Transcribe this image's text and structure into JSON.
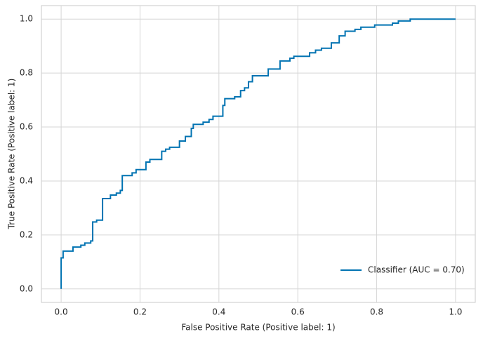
{
  "chart_data": {
    "type": "line",
    "xlabel": "False Positive Rate (Positive label: 1)",
    "ylabel": "True Positive Rate (Positive label: 1)",
    "xlim": [
      -0.05,
      1.05
    ],
    "ylim": [
      -0.05,
      1.05
    ],
    "xticks": [
      {
        "value": 0,
        "label": "0.0"
      },
      0.2,
      0.4,
      0.6,
      0.8,
      {
        "value": 1,
        "label": "1.0"
      }
    ],
    "yticks": [
      {
        "value": 0,
        "label": "0.0"
      },
      0.2,
      0.4,
      0.6,
      0.8,
      {
        "value": 1,
        "label": "1.0"
      }
    ],
    "grid": true,
    "legend": "lower right",
    "series": [
      {
        "name": "Classifier (AUC = 0.70)",
        "color": "#0173b2",
        "x": [
          0,
          0,
          0.005,
          0.005,
          0.03,
          0.03,
          0.05,
          0.05,
          0.06,
          0.06,
          0.075,
          0.075,
          0.08,
          0.08,
          0.09,
          0.09,
          0.105,
          0.105,
          0.125,
          0.125,
          0.14,
          0.14,
          0.15,
          0.15,
          0.155,
          0.155,
          0.18,
          0.18,
          0.19,
          0.19,
          0.215,
          0.215,
          0.225,
          0.225,
          0.255,
          0.255,
          0.265,
          0.265,
          0.275,
          0.275,
          0.3,
          0.3,
          0.315,
          0.315,
          0.33,
          0.33,
          0.335,
          0.335,
          0.36,
          0.36,
          0.375,
          0.375,
          0.385,
          0.385,
          0.41,
          0.41,
          0.415,
          0.415,
          0.44,
          0.44,
          0.455,
          0.455,
          0.465,
          0.465,
          0.475,
          0.475,
          0.485,
          0.485,
          0.525,
          0.525,
          0.555,
          0.555,
          0.58,
          0.58,
          0.59,
          0.59,
          0.63,
          0.63,
          0.645,
          0.645,
          0.66,
          0.66,
          0.685,
          0.685,
          0.705,
          0.705,
          0.72,
          0.72,
          0.745,
          0.745,
          0.76,
          0.76,
          0.795,
          0.795,
          0.84,
          0.84,
          0.855,
          0.855,
          0.885,
          0.885,
          1
        ],
        "values": [
          0,
          0.115,
          0.115,
          0.14,
          0.14,
          0.155,
          0.155,
          0.162,
          0.162,
          0.17,
          0.17,
          0.178,
          0.178,
          0.248,
          0.248,
          0.255,
          0.255,
          0.335,
          0.335,
          0.348,
          0.348,
          0.355,
          0.355,
          0.365,
          0.365,
          0.42,
          0.42,
          0.43,
          0.43,
          0.442,
          0.442,
          0.47,
          0.47,
          0.48,
          0.48,
          0.51,
          0.51,
          0.518,
          0.518,
          0.525,
          0.525,
          0.548,
          0.548,
          0.565,
          0.565,
          0.595,
          0.595,
          0.61,
          0.61,
          0.618,
          0.618,
          0.628,
          0.628,
          0.64,
          0.64,
          0.68,
          0.68,
          0.705,
          0.705,
          0.712,
          0.712,
          0.735,
          0.735,
          0.745,
          0.745,
          0.768,
          0.768,
          0.79,
          0.79,
          0.815,
          0.815,
          0.845,
          0.845,
          0.855,
          0.855,
          0.862,
          0.862,
          0.875,
          0.875,
          0.885,
          0.885,
          0.892,
          0.892,
          0.912,
          0.912,
          0.938,
          0.938,
          0.955,
          0.955,
          0.962,
          0.962,
          0.97,
          0.97,
          0.978,
          0.978,
          0.985,
          0.985,
          0.993,
          0.993,
          1,
          1
        ]
      }
    ]
  }
}
